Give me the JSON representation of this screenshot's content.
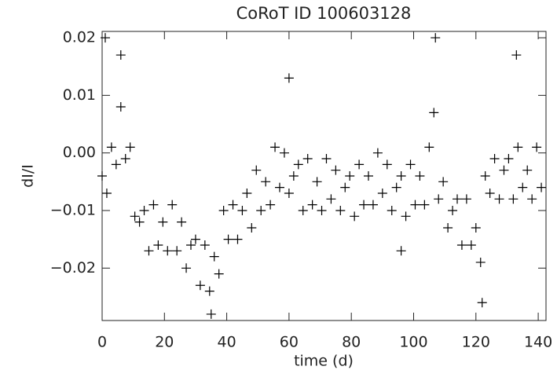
{
  "chart_data": {
    "type": "scatter",
    "title": "CoRoT ID 100603128",
    "x_label": "time (d)",
    "y_label": "dI/I",
    "marker": "+",
    "color": "#000000",
    "xlim": [
      0,
      142.5
    ],
    "ylim": [
      -0.0291,
      0.0211
    ],
    "xticks": [
      0,
      20,
      40,
      60,
      80,
      100,
      120,
      140
    ],
    "yticks": [
      0.02,
      0.01,
      {
        "value": 0,
        "label": "0.00"
      },
      {
        "value": -0.01,
        "label": "−0.01"
      },
      {
        "value": -0.02,
        "label": "−0.02"
      }
    ],
    "series": [
      {
        "name": "dI/I",
        "x": [
          0,
          1.5,
          3,
          4.5,
          6,
          7.5,
          9,
          10.5,
          12,
          13.5,
          15,
          16.5,
          18,
          19.5,
          21,
          22.5,
          24,
          25.5,
          27,
          28.5,
          30,
          31.5,
          33,
          34.5,
          36,
          37.5,
          39,
          40.5,
          42,
          43.5,
          45,
          46.5,
          48,
          49.5,
          51,
          52.5,
          54,
          55.5,
          57,
          58.5,
          60,
          61.5,
          63,
          64.5,
          66,
          67.5,
          69,
          70.5,
          72,
          73.5,
          75,
          76.5,
          78,
          79.5,
          81,
          82.5,
          84,
          85.5,
          87,
          88.5,
          90,
          91.5,
          93,
          94.5,
          96,
          97.5,
          99,
          100.5,
          102,
          103.5,
          105,
          106.5,
          108,
          109.5,
          111,
          112.5,
          114,
          115.5,
          117,
          118.5,
          120,
          121.5,
          123,
          124.5,
          126,
          127.5,
          129,
          130.5,
          132,
          133.5,
          135,
          136.5,
          138,
          139.5,
          141,
          1,
          6,
          107,
          133,
          122,
          35,
          60,
          96
        ],
        "values": [
          -0.004,
          -0.007,
          0.001,
          -0.002,
          0.008,
          -0.001,
          0.001,
          -0.011,
          -0.012,
          -0.01,
          -0.017,
          -0.009,
          -0.016,
          -0.012,
          -0.017,
          -0.009,
          -0.017,
          -0.012,
          -0.02,
          -0.016,
          -0.015,
          -0.023,
          -0.016,
          -0.024,
          -0.018,
          -0.021,
          -0.01,
          -0.015,
          -0.009,
          -0.015,
          -0.01,
          -0.007,
          -0.013,
          -0.003,
          -0.01,
          -0.005,
          -0.009,
          0.001,
          -0.006,
          0.0,
          -0.007,
          -0.004,
          -0.002,
          -0.01,
          -0.001,
          -0.009,
          -0.005,
          -0.01,
          -0.001,
          -0.008,
          -0.003,
          -0.01,
          -0.006,
          -0.004,
          -0.011,
          -0.002,
          -0.009,
          -0.004,
          -0.009,
          0.0,
          -0.007,
          -0.002,
          -0.01,
          -0.006,
          -0.004,
          -0.011,
          -0.002,
          -0.009,
          -0.004,
          -0.009,
          0.001,
          0.007,
          -0.008,
          -0.005,
          -0.013,
          -0.01,
          -0.008,
          -0.016,
          -0.008,
          -0.016,
          -0.013,
          -0.019,
          -0.004,
          -0.007,
          -0.001,
          -0.008,
          -0.003,
          -0.001,
          -0.008,
          0.001,
          -0.006,
          -0.003,
          -0.008,
          0.001,
          -0.006,
          0.02,
          0.017,
          0.02,
          0.017,
          -0.026,
          -0.028,
          0.013,
          -0.017
        ]
      }
    ]
  }
}
